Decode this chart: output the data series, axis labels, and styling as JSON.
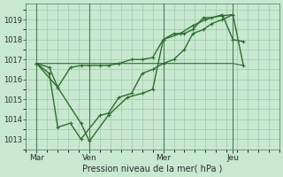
{
  "background_color": "#c8e8d0",
  "grid_color": "#a0c8b0",
  "line_color": "#2d6e2d",
  "xlabel": "Pression niveau de la mer( hPa )",
  "ylim": [
    1012.5,
    1019.8
  ],
  "xlim": [
    0,
    12
  ],
  "yticks": [
    1013,
    1014,
    1015,
    1016,
    1017,
    1018,
    1019
  ],
  "day_labels": [
    "Mar",
    "Ven",
    "Mer",
    "Jeu"
  ],
  "day_positions": [
    0.5,
    3.0,
    6.5,
    9.8
  ],
  "vline_positions": [
    0.5,
    3.0,
    6.5,
    9.8
  ],
  "line1_x": [
    0.5,
    1.1,
    1.5,
    2.1,
    2.6,
    3.0,
    3.5,
    3.9,
    4.4,
    5.0,
    5.5,
    6.0,
    6.5,
    7.0,
    7.5,
    7.9,
    8.4,
    8.8,
    9.3,
    9.8,
    10.3
  ],
  "line1_y": [
    1016.8,
    1016.6,
    1015.6,
    1016.6,
    1016.7,
    1016.7,
    1016.7,
    1016.7,
    1016.8,
    1017.0,
    1017.0,
    1017.1,
    1018.0,
    1018.3,
    1018.3,
    1018.5,
    1019.1,
    1019.1,
    1019.2,
    1019.25,
    1016.7
  ],
  "line2_x": [
    0.5,
    1.5,
    2.6,
    3.0,
    3.9,
    4.8,
    5.5,
    6.0,
    6.5,
    7.3,
    7.9,
    8.5,
    9.3,
    9.8,
    10.3
  ],
  "line2_y": [
    1016.8,
    1015.6,
    1013.8,
    1012.9,
    1014.2,
    1015.1,
    1015.3,
    1015.5,
    1018.0,
    1018.3,
    1018.7,
    1019.0,
    1019.25,
    1018.0,
    1017.9
  ],
  "line3_x": [
    0.5,
    9.8,
    10.3
  ],
  "line3_y": [
    1016.8,
    1016.8,
    1016.7
  ],
  "line4_x": [
    0.5,
    1.1,
    1.5,
    2.1,
    2.6,
    3.5,
    3.9,
    4.4,
    5.0,
    5.5,
    6.0,
    6.5,
    7.0,
    7.5,
    7.9,
    8.4,
    8.8,
    9.3,
    9.8
  ],
  "line4_y": [
    1016.8,
    1016.3,
    1013.6,
    1013.8,
    1013.0,
    1014.2,
    1014.3,
    1015.1,
    1015.3,
    1016.3,
    1016.5,
    1016.8,
    1017.0,
    1017.5,
    1018.3,
    1018.5,
    1018.8,
    1019.0,
    1019.25
  ]
}
